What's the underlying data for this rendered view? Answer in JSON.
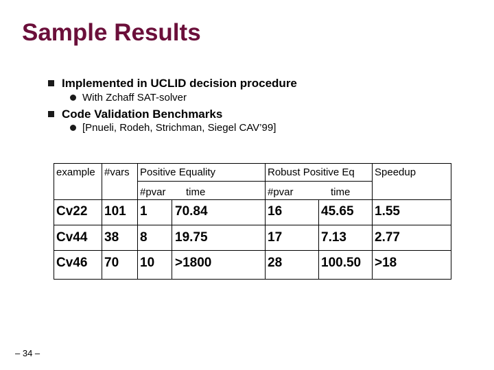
{
  "slide": {
    "title": "Sample Results",
    "bullets": [
      {
        "text": "Implemented in UCLID decision procedure",
        "sub": "With Zchaff SAT-solver"
      },
      {
        "text": "Code Validation Benchmarks",
        "sub": "[Pnueli, Rodeh, Strichman, Siegel CAV’99]"
      }
    ],
    "footer": "– 34 –"
  },
  "table": {
    "headers": {
      "example": "example",
      "vars": "#vars",
      "positive": "Positive Equality",
      "robust": "Robust Positive Eq",
      "speedup": "Speedup",
      "pos_pvar": "#pvar",
      "pos_time": "time",
      "rob_pvar": "#pvar",
      "rob_time": "time"
    },
    "rows": [
      {
        "example": "Cv22",
        "vars": "101",
        "pos_pvar": "1",
        "pos_time": "70.84",
        "rob_pvar": "16",
        "rob_time": "45.65",
        "speedup": "1.55"
      },
      {
        "example": "Cv44",
        "vars": "38",
        "pos_pvar": "8",
        "pos_time": "19.75",
        "rob_pvar": "17",
        "rob_time": "7.13",
        "speedup": "2.77"
      },
      {
        "example": "Cv46",
        "vars": "70",
        "pos_pvar": "10",
        "pos_time": ">1800",
        "rob_pvar": "28",
        "rob_time": "100.50",
        "speedup": ">18"
      }
    ]
  }
}
